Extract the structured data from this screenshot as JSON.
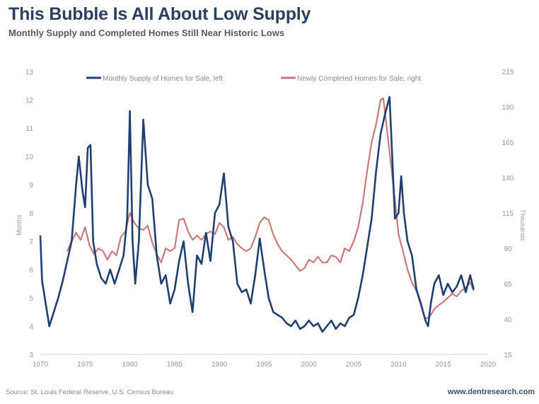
{
  "header": {
    "title": "This Bubble Is All About Low Supply",
    "subtitle": "Monthly Supply and Completed Homes Still Near Historic Lows"
  },
  "footer": {
    "source": "Source: St. Louis Federal Reserve, U.S. Census Bureau",
    "brand": "www.dentresearch.com"
  },
  "colors": {
    "supply": "#1f3f73",
    "completed": "#c97a78",
    "title": "#2b3f5e"
  },
  "chart_data": {
    "type": "line",
    "title": "This Bubble Is All About Low Supply",
    "subtitle": "Monthly Supply and Completed Homes Still Near Historic Lows",
    "xlabel": "",
    "ylabel_left": "Months",
    "ylabel_right": "Thousands",
    "xlim": [
      1970,
      2020
    ],
    "ylim_left": [
      3,
      13
    ],
    "ylim_right": [
      15,
      215
    ],
    "x_ticks": [
      "1970",
      "1975",
      "1980",
      "1985",
      "1990",
      "1995",
      "2000",
      "2005",
      "2010",
      "2015",
      "2020"
    ],
    "y_ticks_left": [
      "3",
      "4",
      "5",
      "6",
      "7",
      "8",
      "9",
      "10",
      "11",
      "12",
      "13"
    ],
    "y_ticks_right": [
      "15",
      "40",
      "65",
      "90",
      "115",
      "140",
      "165",
      "190",
      "215"
    ],
    "grid": false,
    "legend_position": "top",
    "series": [
      {
        "name": "Monthly Supply of Homes for Sale, left",
        "axis": "left",
        "x": [
          1970.0,
          1970.2,
          1970.5,
          1971.0,
          1971.3,
          1971.6,
          1972.0,
          1972.5,
          1973.0,
          1973.5,
          1974.0,
          1974.3,
          1974.7,
          1975.0,
          1975.3,
          1975.6,
          1975.9,
          1976.3,
          1976.8,
          1977.3,
          1977.8,
          1978.3,
          1978.8,
          1979.3,
          1979.7,
          1980.0,
          1980.3,
          1980.6,
          1981.0,
          1981.5,
          1982.0,
          1982.5,
          1983.0,
          1983.5,
          1984.0,
          1984.5,
          1985.0,
          1985.5,
          1986.0,
          1986.5,
          1987.0,
          1987.5,
          1988.0,
          1988.5,
          1989.0,
          1989.5,
          1990.0,
          1990.5,
          1991.0,
          1991.5,
          1992.0,
          1992.5,
          1993.0,
          1993.5,
          1994.0,
          1994.5,
          1995.0,
          1995.5,
          1996.0,
          1996.5,
          1997.0,
          1997.5,
          1998.0,
          1998.5,
          1999.0,
          1999.5,
          2000.0,
          2000.5,
          2001.0,
          2001.5,
          2002.0,
          2002.5,
          2003.0,
          2003.5,
          2004.0,
          2004.5,
          2005.0,
          2005.5,
          2006.0,
          2006.5,
          2007.0,
          2007.5,
          2008.0,
          2008.5,
          2009.0,
          2009.3,
          2009.6,
          2010.0,
          2010.3,
          2010.6,
          2011.0,
          2011.5,
          2012.0,
          2012.5,
          2013.0,
          2013.3,
          2013.6,
          2014.0,
          2014.5,
          2015.0,
          2015.5,
          2016.0,
          2016.5,
          2017.0,
          2017.5,
          2018.0,
          2018.4
        ],
        "values": [
          7.2,
          5.6,
          5.0,
          4.0,
          4.3,
          4.6,
          5.0,
          5.6,
          6.3,
          7.0,
          9.0,
          10.0,
          8.8,
          8.2,
          10.3,
          10.4,
          7.0,
          6.2,
          5.7,
          5.5,
          6.0,
          5.5,
          6.0,
          6.5,
          7.8,
          11.6,
          7.0,
          5.5,
          7.0,
          11.3,
          9.0,
          8.5,
          6.5,
          5.5,
          5.8,
          4.8,
          5.3,
          6.3,
          7.0,
          5.5,
          4.5,
          6.5,
          6.2,
          7.3,
          6.3,
          8.0,
          8.3,
          9.4,
          7.5,
          7.0,
          5.5,
          5.2,
          5.3,
          4.8,
          5.8,
          7.1,
          6.0,
          5.0,
          4.5,
          4.4,
          4.3,
          4.1,
          4.0,
          4.2,
          3.9,
          4.0,
          4.2,
          4.0,
          4.1,
          3.8,
          4.0,
          4.2,
          3.9,
          4.1,
          4.0,
          4.3,
          4.4,
          5.0,
          5.8,
          6.8,
          7.8,
          9.5,
          10.8,
          11.5,
          12.1,
          10.0,
          7.8,
          8.0,
          9.3,
          8.0,
          7.0,
          6.5,
          5.3,
          4.8,
          4.2,
          4.0,
          4.8,
          5.5,
          5.8,
          5.1,
          5.5,
          5.2,
          5.4,
          5.8,
          5.2,
          5.8,
          5.3
        ]
      },
      {
        "name": "Newly Completed Homes for Sale, right",
        "axis": "right",
        "x": [
          1973.0,
          1973.5,
          1974.0,
          1974.5,
          1975.0,
          1975.5,
          1976.0,
          1976.5,
          1977.0,
          1977.5,
          1978.0,
          1978.5,
          1979.0,
          1979.5,
          1980.0,
          1980.5,
          1981.0,
          1981.5,
          1982.0,
          1982.5,
          1983.0,
          1983.5,
          1984.0,
          1984.5,
          1985.0,
          1985.5,
          1986.0,
          1986.5,
          1987.0,
          1987.5,
          1988.0,
          1988.5,
          1989.0,
          1989.5,
          1990.0,
          1990.5,
          1991.0,
          1991.5,
          1992.0,
          1992.5,
          1993.0,
          1993.5,
          1994.0,
          1994.5,
          1995.0,
          1995.5,
          1996.0,
          1996.5,
          1997.0,
          1997.5,
          1998.0,
          1998.5,
          1999.0,
          1999.5,
          2000.0,
          2000.5,
          2001.0,
          2001.5,
          2002.0,
          2002.5,
          2003.0,
          2003.5,
          2004.0,
          2004.5,
          2005.0,
          2005.5,
          2006.0,
          2006.5,
          2007.0,
          2007.5,
          2008.0,
          2008.3,
          2008.6,
          2009.0,
          2009.5,
          2010.0,
          2010.5,
          2011.0,
          2011.5,
          2012.0,
          2012.5,
          2013.0,
          2013.5,
          2014.0,
          2014.5,
          2015.0,
          2015.5,
          2016.0,
          2016.5,
          2017.0,
          2017.5,
          2018.0,
          2018.4
        ],
        "values": [
          88,
          95,
          101,
          96,
          105,
          92,
          86,
          90,
          88,
          82,
          88,
          85,
          98,
          102,
          115,
          108,
          104,
          103,
          106,
          94,
          86,
          80,
          90,
          88,
          90,
          110,
          111,
          102,
          96,
          99,
          96,
          100,
          102,
          100,
          108,
          105,
          96,
          98,
          93,
          90,
          88,
          90,
          98,
          108,
          112,
          110,
          100,
          93,
          88,
          85,
          82,
          78,
          74,
          76,
          82,
          80,
          84,
          80,
          80,
          85,
          84,
          80,
          90,
          88,
          95,
          105,
          122,
          145,
          165,
          178,
          195,
          196,
          180,
          158,
          130,
          100,
          88,
          75,
          66,
          60,
          50,
          40,
          42,
          47,
          50,
          52,
          55,
          58,
          56,
          60,
          62,
          66,
          60
        ]
      }
    ]
  }
}
